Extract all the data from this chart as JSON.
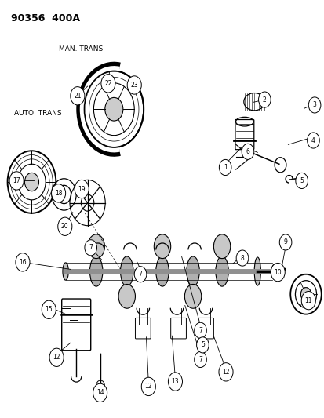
{
  "title": "90356  400A",
  "label_man_trans": "MAN. TRANS",
  "label_auto_trans": "AUTO  TRANS",
  "bg_color": "#ffffff",
  "fg_color": "#000000",
  "fig_width": 4.14,
  "fig_height": 5.33,
  "dpi": 100
}
